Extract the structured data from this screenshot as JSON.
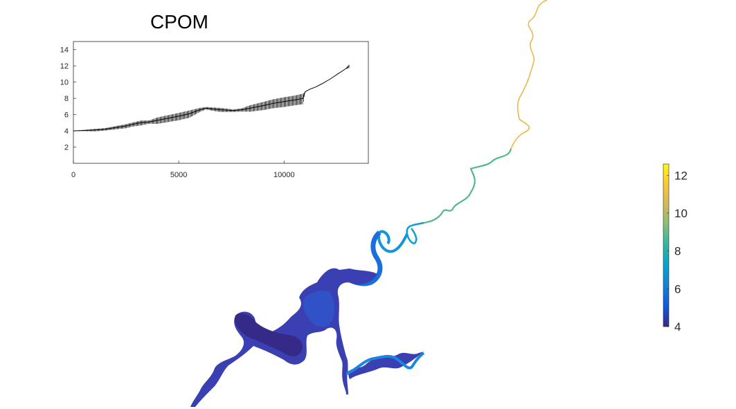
{
  "title": "CPOM",
  "chart_data": [
    {
      "type": "line",
      "title": "CPOM",
      "xlabel": "",
      "ylabel": "",
      "xlim": [
        0,
        14000
      ],
      "ylim": [
        0,
        15
      ],
      "x_ticks": [
        0,
        5000,
        10000
      ],
      "y_ticks": [
        2,
        4,
        6,
        8,
        10,
        12,
        14
      ],
      "grid": false,
      "series": [
        {
          "color": "#000000",
          "x": [
            0,
            1000,
            1500,
            2000,
            2500,
            2800,
            3200,
            3600,
            4000,
            5000,
            5500,
            6000,
            6300,
            6600,
            7000,
            7600,
            8000,
            8400,
            9000,
            9500,
            10000,
            10500,
            10900,
            11000,
            11200,
            11500,
            11800,
            12200,
            12600,
            12900,
            13100
          ],
          "y": [
            4.0,
            4.1,
            4.2,
            4.4,
            4.6,
            4.8,
            5.0,
            5.1,
            5.3,
            5.8,
            6.1,
            6.6,
            6.8,
            6.7,
            6.6,
            6.5,
            6.6,
            6.8,
            7.1,
            7.4,
            7.6,
            7.8,
            8.0,
            8.8,
            9.1,
            9.4,
            9.8,
            10.4,
            11.1,
            11.6,
            12.0
          ],
          "vertical_spread": [
            0,
            0.3,
            0.3,
            0.4,
            0.5,
            0.5,
            0.6,
            0.4,
            0.8,
            0.9,
            0.9,
            0.5,
            0.3,
            0.4,
            0.5,
            0.3,
            0.4,
            0.8,
            1.0,
            1.1,
            1.2,
            1.2,
            1.3,
            0,
            0,
            0,
            0,
            0,
            0,
            0,
            0.5
          ]
        }
      ]
    },
    {
      "type": "heatmap",
      "title": "",
      "colormap": "parula",
      "colorbar": {
        "limits": [
          4,
          12.6
        ],
        "ticks": [
          4,
          6,
          8,
          10,
          12
        ]
      }
    }
  ]
}
